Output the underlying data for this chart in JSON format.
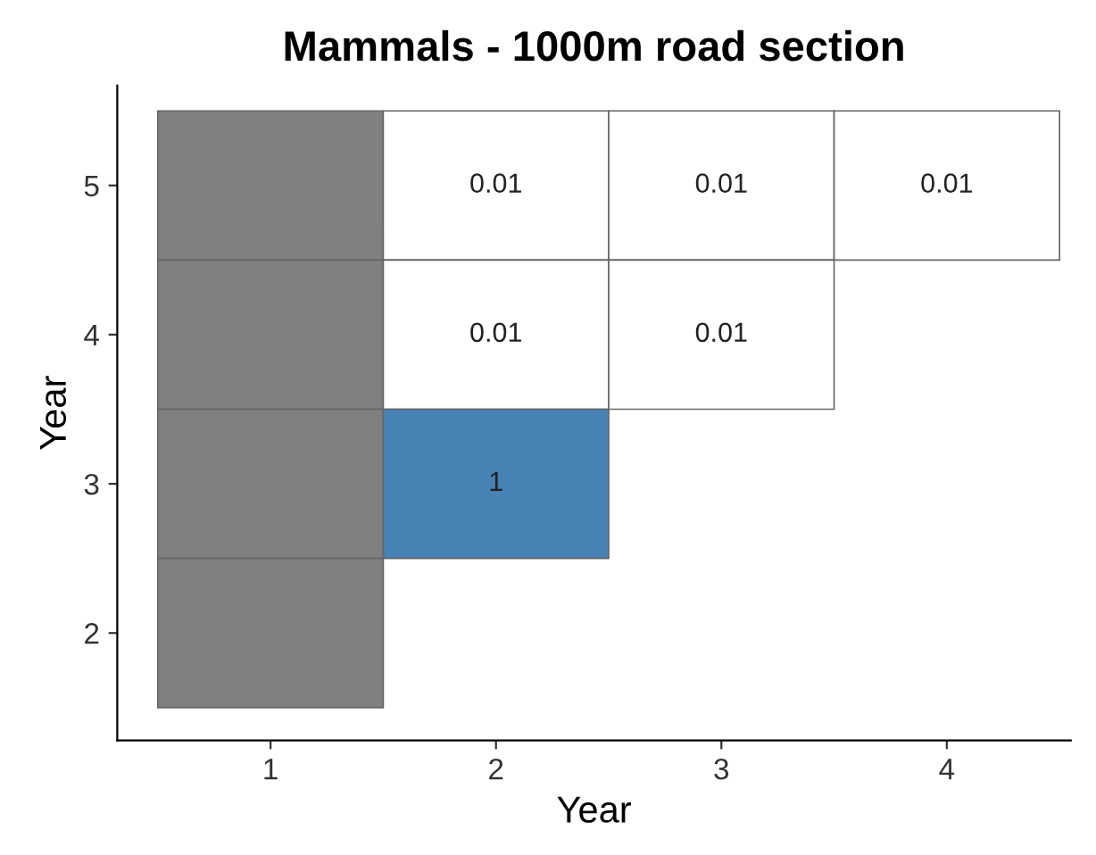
{
  "chart_data": {
    "type": "heatmap",
    "title": "Mammals - 1000m road section",
    "xlabel": "Year",
    "ylabel": "Year",
    "categories": [
      "1",
      "2",
      "3",
      "4"
    ],
    "y_categories": [
      "5",
      "4",
      "3",
      "2"
    ],
    "cells": [
      [
        null,
        0.01,
        0.01,
        0.01
      ],
      [
        null,
        0.01,
        0.01,
        null
      ],
      [
        null,
        1,
        null,
        null
      ],
      [
        null,
        null,
        null,
        null
      ]
    ],
    "colors": [
      [
        "#808080",
        "#ffffff",
        "#ffffff",
        "#ffffff"
      ],
      [
        "#808080",
        "#ffffff",
        "#ffffff",
        null
      ],
      [
        "#808080",
        "#4682b4",
        null,
        null
      ],
      [
        "#808080",
        null,
        null,
        null
      ]
    ],
    "data_labels": true,
    "grid": false
  }
}
